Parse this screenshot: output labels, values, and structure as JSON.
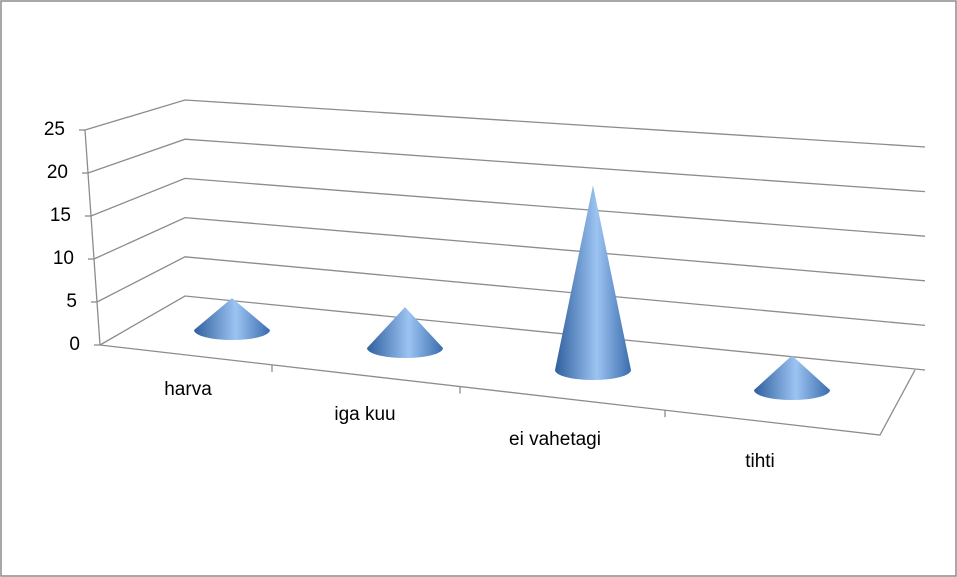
{
  "chart_data": {
    "type": "cone3d",
    "categories": [
      "harva",
      "iga kuu",
      "ei vahetagi",
      "tihti"
    ],
    "values": [
      4,
      5,
      22,
      4
    ],
    "color": "#4f81bd",
    "ylim": [
      0,
      25
    ],
    "yticks": [
      0,
      5,
      10,
      15,
      20,
      25
    ],
    "grid": true
  }
}
